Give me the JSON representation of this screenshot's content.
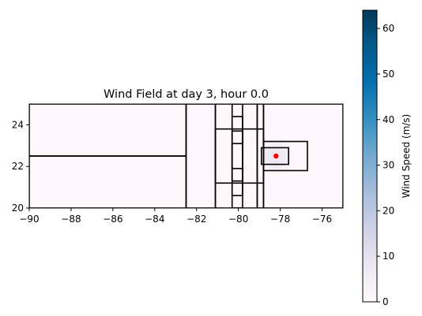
{
  "chart_data": [
    {
      "type": "heatmap",
      "title": "Wind Field at day   3, hour 0.0",
      "xlim": [
        -90,
        -75
      ],
      "ylim": [
        20,
        25
      ],
      "xticks": [
        -90,
        -88,
        -86,
        -84,
        -82,
        -80,
        -78,
        -76
      ],
      "yticks": [
        20,
        22,
        24
      ],
      "xtick_labels": [
        "−90",
        "−88",
        "−86",
        "−84",
        "−82",
        "−80",
        "−78",
        "−76"
      ],
      "ytick_labels": [
        "20",
        "22",
        "24"
      ],
      "grid": false,
      "storm_center": {
        "x": -78.2,
        "y": 22.5,
        "color": "#ff0000"
      },
      "wind_field": {
        "peak_speed": 6,
        "decay_radius_deg": 1.3
      },
      "grid_boxes": [
        [
          -90,
          20,
          -82.5,
          22.5
        ],
        [
          -90,
          22.5,
          -82.5,
          25
        ],
        [
          -82.5,
          20,
          -81.1,
          25
        ],
        [
          -81.1,
          20,
          -79.1,
          25
        ],
        [
          -81.1,
          21.2,
          -78.8,
          23.8
        ],
        [
          -80.3,
          20,
          -79.8,
          25
        ],
        [
          -80.3,
          20.6,
          -79.8,
          24.4
        ],
        [
          -80.3,
          21.3,
          -79.8,
          23.7
        ],
        [
          -80.3,
          21.9,
          -79.8,
          23.1
        ],
        [
          -79.1,
          20,
          -78.8,
          25
        ],
        [
          -78.8,
          21.8,
          -76.7,
          23.2
        ],
        [
          -78.9,
          22.1,
          -77.6,
          22.9
        ],
        [
          -78.8,
          20,
          -75,
          25
        ]
      ]
    },
    {
      "type": "colorbar",
      "label": "Wind Speed (m/s)",
      "min": 0,
      "max": 64,
      "ticks": [
        0,
        10,
        20,
        30,
        40,
        50,
        60
      ],
      "colormap": [
        "#fff7fb",
        "#ece7f2",
        "#d0d1e6",
        "#a6bddb",
        "#74a9cf",
        "#3690c0",
        "#0570b0",
        "#045a8d",
        "#023858"
      ]
    }
  ]
}
